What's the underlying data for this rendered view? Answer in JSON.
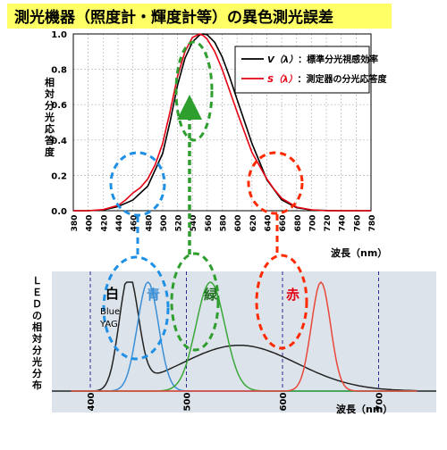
{
  "title": "測光機器（照度計・輝度計等）の異色測光誤差",
  "colors": {
    "title_bg": "#ffff66",
    "black_curve": "#000000",
    "red_curve": "#e60012",
    "blue_ellipse": "#1e90e6",
    "green_ellipse": "#2e9e2e",
    "red_ellipse": "#ff2a00",
    "lower_bg": "#dde3ea"
  },
  "chart_data": [
    {
      "type": "line",
      "ylabel": "相対分光応答度",
      "xlabel": "波長（nm）",
      "xlim": [
        380,
        780
      ],
      "ylim": [
        0,
        1.0
      ],
      "x_ticks": [
        380,
        400,
        420,
        440,
        460,
        480,
        500,
        520,
        540,
        560,
        580,
        600,
        620,
        640,
        660,
        680,
        700,
        720,
        740,
        760,
        780
      ],
      "y_ticks": [
        0.0,
        0.2,
        0.4,
        0.6,
        0.8,
        1.0
      ],
      "y_tick_labels": [
        "0.0",
        "0.2",
        "0.4",
        "0.6",
        "0.8",
        "1.0"
      ],
      "grid": true,
      "legend_position": "top-right",
      "series": [
        {
          "name_symbol": "V（λ）",
          "name": "：標準分光視感効率",
          "color": "#000000",
          "x": [
            380,
            400,
            420,
            440,
            460,
            480,
            500,
            510,
            520,
            530,
            540,
            550,
            555,
            560,
            570,
            580,
            590,
            600,
            620,
            640,
            660,
            680,
            700,
            720,
            740,
            760,
            780
          ],
          "y": [
            0.0,
            0.0004,
            0.004,
            0.023,
            0.06,
            0.139,
            0.323,
            0.503,
            0.71,
            0.862,
            0.954,
            0.995,
            1.0,
            0.995,
            0.952,
            0.87,
            0.757,
            0.631,
            0.381,
            0.175,
            0.061,
            0.017,
            0.004,
            0.001,
            0.0,
            0.0,
            0.0
          ]
        },
        {
          "name_symbol": "S（λ）",
          "name": "：測定器の分光応答度",
          "color": "#e60012",
          "x": [
            380,
            400,
            420,
            440,
            450,
            460,
            470,
            480,
            490,
            500,
            510,
            520,
            530,
            540,
            550,
            555,
            560,
            570,
            580,
            590,
            600,
            620,
            640,
            650,
            660,
            680,
            700,
            720,
            740,
            760,
            780
          ],
          "y": [
            0.0,
            0.0,
            0.006,
            0.03,
            0.06,
            0.1,
            0.13,
            0.18,
            0.26,
            0.38,
            0.56,
            0.76,
            0.9,
            0.98,
            1.0,
            0.99,
            0.97,
            0.9,
            0.8,
            0.68,
            0.56,
            0.33,
            0.18,
            0.12,
            0.07,
            0.02,
            0.005,
            0.0,
            0.0,
            0.0,
            0.0
          ]
        }
      ],
      "annotations": []
    },
    {
      "type": "line",
      "ylabel": "ＬＥＤの相対分光分布",
      "xlabel": "波長（nm）",
      "xlim": [
        360,
        760
      ],
      "ylim": [
        0,
        1.0
      ],
      "x_ticks": [
        400,
        500,
        600,
        700
      ],
      "x_tick_labels": [
        "400",
        "500",
        "600",
        "700"
      ],
      "series": [
        {
          "label_text": "白",
          "sub_label_1": "Blue",
          "sub_label_2": "YAG",
          "color": "#222222",
          "peak": 440,
          "width": 10,
          "height": 1.0,
          "broad_peak": 555,
          "broad_width": 60,
          "broad_height": 0.42
        },
        {
          "label_text": "青",
          "color": "#3a8fd6",
          "peak": 460,
          "width": 11,
          "height": 1.0
        },
        {
          "label_text": "緑",
          "color": "#3aa83a",
          "peak": 525,
          "width": 15,
          "height": 1.0
        },
        {
          "label_text": "赤",
          "color": "#e8473a",
          "peak": 640,
          "width": 10,
          "height": 1.0
        }
      ]
    }
  ]
}
